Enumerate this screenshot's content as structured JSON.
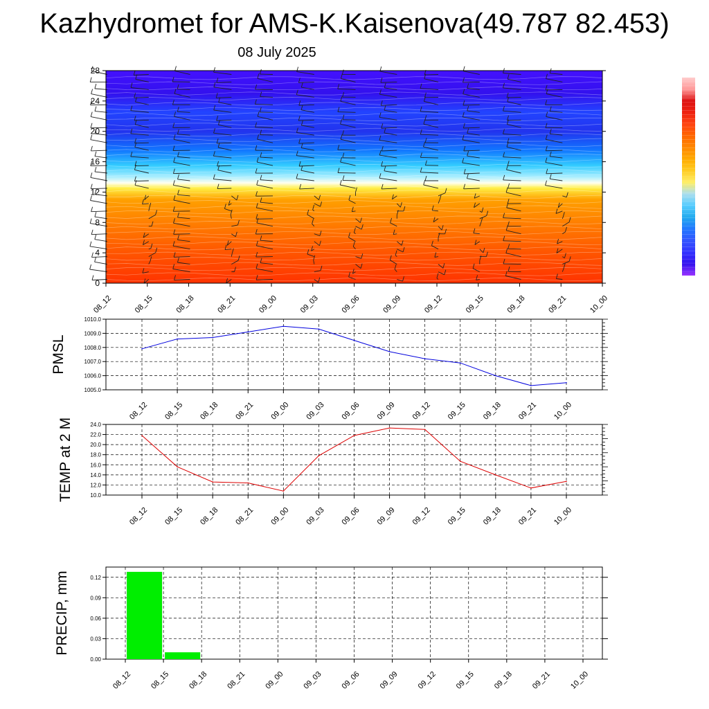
{
  "title": "Kazhydromet for AMS-K.Kaisenova(49.787 82.453)",
  "subtitle": "08 July 2025",
  "colors": {
    "pmsl_line": "#0000dd",
    "temp_line": "#dd0000",
    "precip_bar": "#00ee00",
    "colorbar": [
      "#9933ff",
      "#3311ee",
      "#3333ff",
      "#3355ff",
      "#2277ff",
      "#22aaee",
      "#55ccff",
      "#aaddee",
      "#ffee66",
      "#ffcc22",
      "#ffaa00",
      "#ff8800",
      "#ff6600",
      "#ff4411",
      "#ee2211",
      "#dd1111",
      "#ff9999",
      "#ffcccc"
    ]
  },
  "chart_data": [
    {
      "type": "heatmap",
      "name": "cross-section",
      "x_labels": [
        "08_12",
        "08_15",
        "08_18",
        "08_21",
        "09_00",
        "09_03",
        "09_06",
        "09_09",
        "09_12",
        "09_15",
        "09_18",
        "09_21",
        "10_00"
      ],
      "y_ticks": [
        "0",
        "4",
        "8",
        "12",
        "16",
        "20",
        "24",
        "28"
      ],
      "ylim": [
        0,
        28
      ],
      "color_levels": [
        {
          "y": 0,
          "color": "#ff3300"
        },
        {
          "y": 4,
          "color": "#ff5500"
        },
        {
          "y": 8,
          "color": "#ff7f00"
        },
        {
          "y": 11,
          "color": "#ffa000"
        },
        {
          "y": 12.5,
          "color": "#ffee44"
        },
        {
          "y": 13.2,
          "color": "#ffffee"
        },
        {
          "y": 14,
          "color": "#aaeeff"
        },
        {
          "y": 15.5,
          "color": "#33ccff"
        },
        {
          "y": 17.5,
          "color": "#1177ff"
        },
        {
          "y": 20,
          "color": "#2233ee"
        },
        {
          "y": 22.5,
          "color": "#2244ff"
        },
        {
          "y": 25,
          "color": "#3311ee"
        },
        {
          "y": 28,
          "color": "#4411ff"
        }
      ],
      "wind_levels": [
        0.5,
        1.5,
        2.5,
        3.5,
        4.5,
        5.5,
        6.5,
        7.5,
        8.5,
        9.5,
        10.5,
        11.5,
        12.5,
        13.5,
        14.5,
        15.5,
        16.5,
        17.5,
        18.5,
        19.5,
        20.5,
        21.5,
        22.5,
        23.5,
        24.5,
        25.5,
        26.5,
        27.5
      ]
    },
    {
      "type": "line",
      "name": "pmsl",
      "ylabel": "PMSL",
      "x": [
        "08_12",
        "08_15",
        "08_18",
        "08_21",
        "09_00",
        "09_03",
        "09_06",
        "09_09",
        "09_12",
        "09_15",
        "09_18",
        "09_21",
        "10_00"
      ],
      "values": [
        1007.9,
        1008.6,
        1008.7,
        1009.1,
        1009.5,
        1009.3,
        1008.5,
        1007.7,
        1007.2,
        1006.9,
        1006.0,
        1005.3,
        1005.5
      ],
      "ylim": [
        1005.0,
        1010.0
      ],
      "y_ticks": [
        "1005.0",
        "1006.0",
        "1007.0",
        "1008.0",
        "1009.0",
        "1010.0"
      ],
      "grid": true
    },
    {
      "type": "line",
      "name": "temp",
      "ylabel": "TEMP at 2 M",
      "x": [
        "08_12",
        "08_15",
        "08_18",
        "08_21",
        "09_00",
        "09_03",
        "09_06",
        "09_09",
        "09_12",
        "09_15",
        "09_18",
        "09_21",
        "10_00"
      ],
      "values": [
        21.8,
        15.6,
        12.6,
        12.4,
        10.8,
        17.8,
        21.8,
        23.3,
        23.0,
        16.7,
        14.0,
        11.4,
        12.7
      ],
      "ylim": [
        10.0,
        24.0
      ],
      "y_ticks": [
        "10.0",
        "12.0",
        "14.0",
        "16.0",
        "18.0",
        "20.0",
        "22.0",
        "24.0"
      ],
      "grid": true
    },
    {
      "type": "bar",
      "name": "precip",
      "ylabel": "PRECIP, mm",
      "categories": [
        "08_12",
        "08_15",
        "08_18",
        "08_21",
        "09_00",
        "09_03",
        "09_06",
        "09_09",
        "09_12",
        "09_15",
        "09_18",
        "09_21",
        "10_00"
      ],
      "values": [
        0,
        0.128,
        0.01,
        0,
        0,
        0,
        0,
        0,
        0,
        0,
        0,
        0,
        0
      ],
      "ylim": [
        0,
        0.135
      ],
      "y_ticks": [
        "0.00",
        "0.03",
        "0.06",
        "0.09",
        "0.12"
      ],
      "grid": true
    }
  ]
}
